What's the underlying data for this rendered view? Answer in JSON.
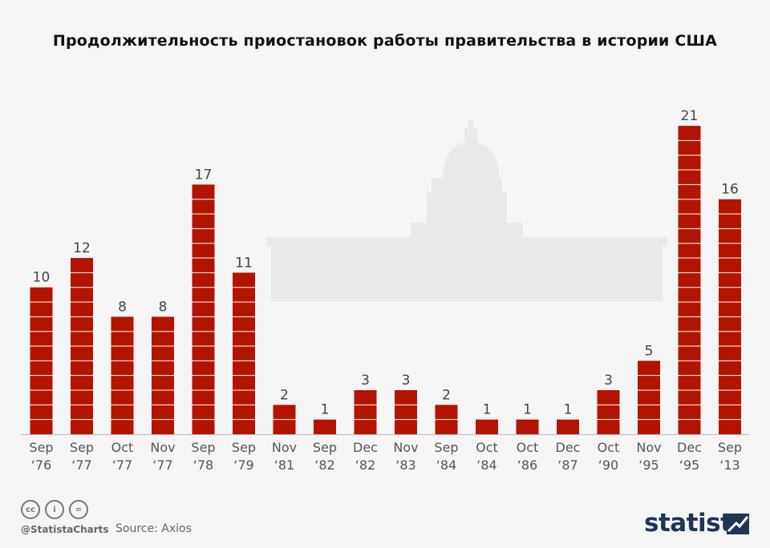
{
  "title": "Продолжительность приостановок работы правительства в истории США",
  "footer": {
    "handle": "@StatistaCharts",
    "source": "Source: Axios",
    "brand": "statista",
    "icons": [
      "cc-license-icon",
      "attribution-icon",
      "no-derivatives-icon"
    ]
  },
  "colors": {
    "bar": "#b31400",
    "stripe": "#ffffff",
    "background": "#f5f5f5",
    "brand": "#1d3557"
  },
  "chart_data": {
    "type": "bar",
    "title": "Продолжительность приостановок работы правительства в истории США",
    "categories": [
      [
        "Sep",
        "‘76"
      ],
      [
        "Sep",
        "‘77"
      ],
      [
        "Oct",
        "‘77"
      ],
      [
        "Nov",
        "‘77"
      ],
      [
        "Sep",
        "‘78"
      ],
      [
        "Sep",
        "‘79"
      ],
      [
        "Nov",
        "‘81"
      ],
      [
        "Sep",
        "‘82"
      ],
      [
        "Dec",
        "‘82"
      ],
      [
        "Nov",
        "‘83"
      ],
      [
        "Sep",
        "‘84"
      ],
      [
        "Oct",
        "‘84"
      ],
      [
        "Oct",
        "‘86"
      ],
      [
        "Dec",
        "‘87"
      ],
      [
        "Oct",
        "‘90"
      ],
      [
        "Nov",
        "‘95"
      ],
      [
        "Dec",
        "‘95"
      ],
      [
        "Sep",
        "‘13"
      ]
    ],
    "values": [
      10,
      12,
      8,
      8,
      17,
      11,
      2,
      1,
      3,
      3,
      2,
      1,
      1,
      1,
      3,
      5,
      21,
      16
    ],
    "ylim": [
      0,
      21
    ],
    "grid": false,
    "data_labels": true
  }
}
